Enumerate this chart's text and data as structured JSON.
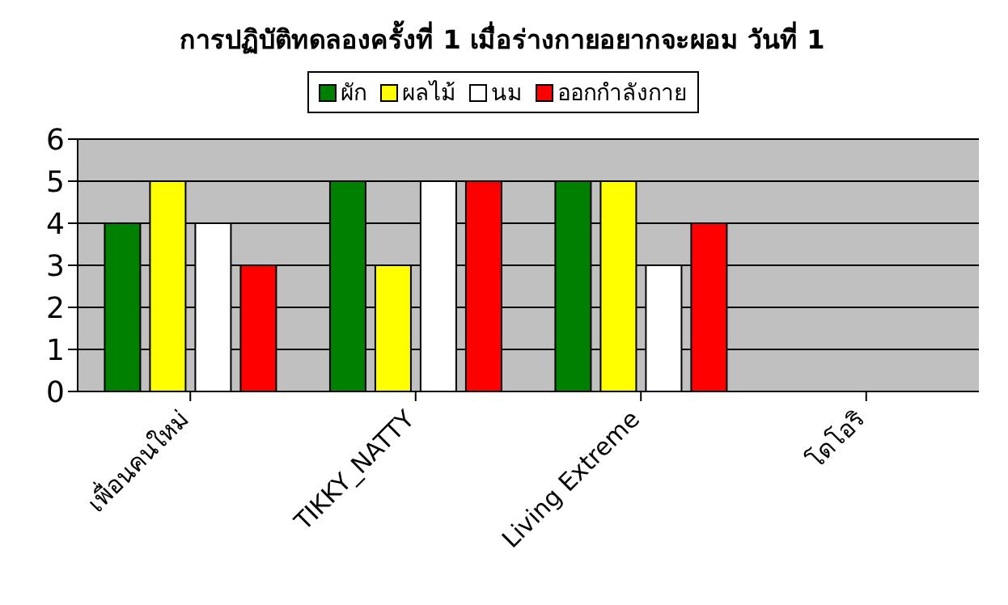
{
  "chart_data": {
    "type": "bar",
    "title": "การปฏิบัติทดลองครั้งที่ 1 เมื่อร่างกายอยากจะผอม วันที่ 1",
    "categories": [
      "เพื่อนคนใหม่",
      "TIKKY_NATTY",
      "Living Extreme",
      "โดโอริ"
    ],
    "series": [
      {
        "name": "ผัก",
        "color": "#008000",
        "values": [
          4,
          5,
          5,
          null
        ]
      },
      {
        "name": "ผลไม้",
        "color": "#ffff00",
        "values": [
          5,
          3,
          5,
          null
        ]
      },
      {
        "name": "นม",
        "color": "#ffffff",
        "values": [
          4,
          5,
          3,
          null
        ]
      },
      {
        "name": "ออกกำลังกาย",
        "color": "#ff0000",
        "values": [
          3,
          5,
          4,
          null
        ]
      }
    ],
    "ylim": [
      0,
      6
    ],
    "yticks": [
      0,
      1,
      2,
      3,
      4,
      5,
      6
    ],
    "grid": "y",
    "legend": "top"
  }
}
